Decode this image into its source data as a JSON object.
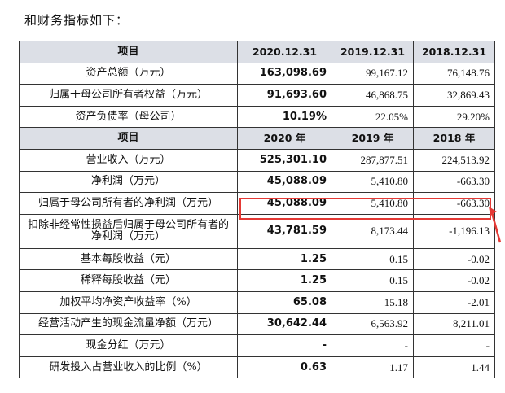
{
  "intro": "和财务指标如下：",
  "sections": [
    {
      "header": [
        "项目",
        "2020.12.31",
        "2019.12.31",
        "2018.12.31"
      ],
      "rows": [
        {
          "label": "资产总额（万元）",
          "values": [
            "163,098.69",
            "99,167.12",
            "76,148.76"
          ]
        },
        {
          "label": "归属于母公司所有者权益（万元）",
          "values": [
            "91,693.60",
            "46,868.75",
            "32,869.43"
          ]
        },
        {
          "label": "资产负债率（母公司）",
          "values": [
            "10.19%",
            "22.05%",
            "29.20%"
          ]
        }
      ]
    },
    {
      "header": [
        "项目",
        "2020 年",
        "2019 年",
        "2018 年"
      ],
      "rows": [
        {
          "label": "营业收入（万元）",
          "values": [
            "525,301.10",
            "287,877.51",
            "224,513.92"
          ]
        },
        {
          "label": "净利润（万元）",
          "values": [
            "45,088.09",
            "5,410.80",
            "-663.30"
          ]
        },
        {
          "label": "归属于母公司所有者的净利润（万元）",
          "values": [
            "45,088.09",
            "5,410.80",
            "-663.30"
          ],
          "highlighted": true
        },
        {
          "label": "扣除非经常性损益后归属于母公司所有者的净利润（万元）",
          "values": [
            "43,781.59",
            "8,173.44",
            "-1,196.13"
          ]
        },
        {
          "label": "基本每股收益（元）",
          "values": [
            "1.25",
            "0.15",
            "-0.02"
          ]
        },
        {
          "label": "稀释每股收益（元）",
          "values": [
            "1.25",
            "0.15",
            "-0.02"
          ]
        },
        {
          "label": "加权平均净资产收益率（%）",
          "values": [
            "65.08",
            "15.18",
            "-2.01"
          ]
        },
        {
          "label": "经营活动产生的现金流量净额（万元）",
          "values": [
            "30,642.44",
            "6,563.92",
            "8,211.01"
          ]
        },
        {
          "label": "现金分红（万元）",
          "values": [
            "-",
            "-",
            "-"
          ]
        },
        {
          "label": "研发投入占营业收入的比例（%）",
          "values": [
            "0.63",
            "1.17",
            "1.44"
          ]
        }
      ]
    }
  ],
  "colors": {
    "header_bg": "#dcdfe6",
    "highlight": "#e53935"
  }
}
